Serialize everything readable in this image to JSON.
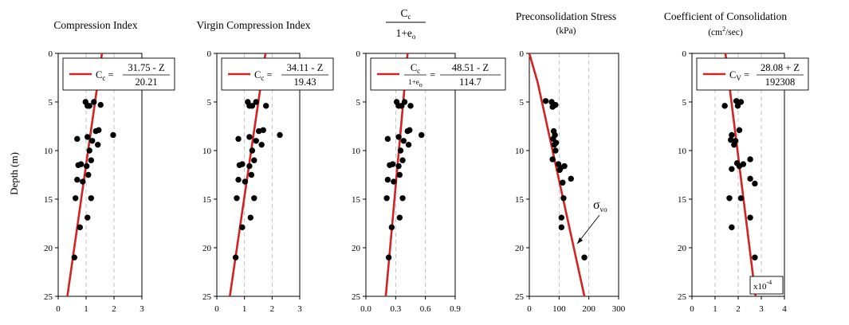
{
  "y_axis_label": "Depth (m)",
  "chart_data": [
    {
      "type": "scatter",
      "title": "Compression Index",
      "ylabel": "Depth (m)",
      "x_ticks": [
        "0",
        "1",
        "2",
        "3"
      ],
      "y_ticks": [
        "0",
        "5",
        "10",
        "15",
        "20",
        "25"
      ],
      "xlim": [
        0,
        3
      ],
      "ylim": [
        0,
        25
      ],
      "grid": "vertical dashed",
      "legend_eq": {
        "lhs": "C",
        "lhs_sub": "c",
        "num": "31.75 - Z",
        "den": "20.21"
      },
      "points": [
        {
          "x": 0.98,
          "y": 5.0
        },
        {
          "x": 1.05,
          "y": 5.4
        },
        {
          "x": 1.12,
          "y": 5.4
        },
        {
          "x": 1.28,
          "y": 5.0
        },
        {
          "x": 1.52,
          "y": 5.3
        },
        {
          "x": 1.45,
          "y": 7.9
        },
        {
          "x": 1.35,
          "y": 8.0
        },
        {
          "x": 1.97,
          "y": 8.4
        },
        {
          "x": 0.68,
          "y": 8.8
        },
        {
          "x": 1.05,
          "y": 8.6
        },
        {
          "x": 1.22,
          "y": 9.0
        },
        {
          "x": 1.42,
          "y": 9.4
        },
        {
          "x": 1.12,
          "y": 10.0
        },
        {
          "x": 0.72,
          "y": 11.5
        },
        {
          "x": 0.82,
          "y": 11.4
        },
        {
          "x": 1.02,
          "y": 11.6
        },
        {
          "x": 1.18,
          "y": 11.0
        },
        {
          "x": 0.68,
          "y": 13.0
        },
        {
          "x": 0.88,
          "y": 13.2
        },
        {
          "x": 1.08,
          "y": 12.5
        },
        {
          "x": 0.62,
          "y": 14.9
        },
        {
          "x": 1.18,
          "y": 14.9
        },
        {
          "x": 1.05,
          "y": 16.9
        },
        {
          "x": 0.78,
          "y": 17.9
        },
        {
          "x": 0.58,
          "y": 21.0
        }
      ],
      "fit_line": [
        {
          "x": 1.57,
          "y": 0
        },
        {
          "x": 0.33,
          "y": 25
        }
      ]
    },
    {
      "type": "scatter",
      "title": "Virgin Compression Index",
      "x_ticks": [
        "0",
        "1",
        "2",
        "3"
      ],
      "y_ticks": [
        "0",
        "5",
        "10",
        "15",
        "20",
        "25"
      ],
      "xlim": [
        0,
        3
      ],
      "ylim": [
        0,
        25
      ],
      "grid": "vertical dashed",
      "legend_eq": {
        "lhs": "C",
        "lhs_sub": "c",
        "num": "34.11 - Z",
        "den": "19.43"
      },
      "points": [
        {
          "x": 1.12,
          "y": 5.0
        },
        {
          "x": 1.18,
          "y": 5.4
        },
        {
          "x": 1.28,
          "y": 5.4
        },
        {
          "x": 1.42,
          "y": 5.0
        },
        {
          "x": 1.78,
          "y": 5.4
        },
        {
          "x": 1.68,
          "y": 7.9
        },
        {
          "x": 1.52,
          "y": 8.0
        },
        {
          "x": 2.28,
          "y": 8.4
        },
        {
          "x": 0.78,
          "y": 8.8
        },
        {
          "x": 1.18,
          "y": 8.6
        },
        {
          "x": 1.42,
          "y": 9.0
        },
        {
          "x": 1.62,
          "y": 9.4
        },
        {
          "x": 1.28,
          "y": 10.0
        },
        {
          "x": 0.82,
          "y": 11.5
        },
        {
          "x": 0.92,
          "y": 11.4
        },
        {
          "x": 1.18,
          "y": 11.6
        },
        {
          "x": 1.35,
          "y": 11.0
        },
        {
          "x": 0.78,
          "y": 13.0
        },
        {
          "x": 1.02,
          "y": 13.2
        },
        {
          "x": 1.25,
          "y": 12.5
        },
        {
          "x": 0.72,
          "y": 14.9
        },
        {
          "x": 1.35,
          "y": 14.9
        },
        {
          "x": 1.22,
          "y": 16.9
        },
        {
          "x": 0.92,
          "y": 17.9
        },
        {
          "x": 0.68,
          "y": 21.0
        }
      ],
      "fit_line": [
        {
          "x": 1.76,
          "y": 0
        },
        {
          "x": 0.47,
          "y": 25
        }
      ]
    },
    {
      "type": "scatter",
      "title": "Cc / 1+eo",
      "x_ticks": [
        "0.0",
        "0.3",
        "0.6",
        "0.9"
      ],
      "y_ticks": [
        "0",
        "5",
        "10",
        "15",
        "20",
        "25"
      ],
      "xlim": [
        0,
        0.9
      ],
      "ylim": [
        0,
        25
      ],
      "grid": "vertical dashed",
      "legend_eq": {
        "num": "48.51 - Z",
        "den": "114.7"
      },
      "points": [
        {
          "x": 0.31,
          "y": 5.0
        },
        {
          "x": 0.33,
          "y": 5.4
        },
        {
          "x": 0.36,
          "y": 5.4
        },
        {
          "x": 0.39,
          "y": 5.0
        },
        {
          "x": 0.45,
          "y": 5.4
        },
        {
          "x": 0.44,
          "y": 7.9
        },
        {
          "x": 0.42,
          "y": 8.0
        },
        {
          "x": 0.56,
          "y": 8.4
        },
        {
          "x": 0.22,
          "y": 8.8
        },
        {
          "x": 0.33,
          "y": 8.6
        },
        {
          "x": 0.38,
          "y": 9.0
        },
        {
          "x": 0.43,
          "y": 9.4
        },
        {
          "x": 0.35,
          "y": 10.0
        },
        {
          "x": 0.24,
          "y": 11.5
        },
        {
          "x": 0.27,
          "y": 11.4
        },
        {
          "x": 0.33,
          "y": 11.6
        },
        {
          "x": 0.37,
          "y": 11.0
        },
        {
          "x": 0.22,
          "y": 13.0
        },
        {
          "x": 0.28,
          "y": 13.2
        },
        {
          "x": 0.34,
          "y": 12.5
        },
        {
          "x": 0.21,
          "y": 14.9
        },
        {
          "x": 0.37,
          "y": 14.9
        },
        {
          "x": 0.34,
          "y": 16.9
        },
        {
          "x": 0.26,
          "y": 17.9
        },
        {
          "x": 0.23,
          "y": 21.0
        }
      ],
      "fit_line": [
        {
          "x": 0.42,
          "y": 0
        },
        {
          "x": 0.2,
          "y": 25
        }
      ]
    },
    {
      "type": "scatter",
      "title": "Preconsolidation Stress",
      "subtitle": "(kPa)",
      "x_ticks": [
        "0",
        "100",
        "200",
        "300"
      ],
      "y_ticks": [
        "0",
        "5",
        "10",
        "15",
        "20",
        "25"
      ],
      "xlim": [
        0,
        300
      ],
      "ylim": [
        0,
        25
      ],
      "grid": "vertical dashed",
      "annotation": {
        "symbol": "σ",
        "sub": "vo"
      },
      "points": [
        {
          "x": 55,
          "y": 4.9
        },
        {
          "x": 75,
          "y": 5.0
        },
        {
          "x": 82,
          "y": 5.4
        },
        {
          "x": 88,
          "y": 5.3
        },
        {
          "x": 78,
          "y": 5.5
        },
        {
          "x": 82,
          "y": 8.0
        },
        {
          "x": 86,
          "y": 8.4
        },
        {
          "x": 80,
          "y": 8.8
        },
        {
          "x": 84,
          "y": 9.4
        },
        {
          "x": 90,
          "y": 9.2
        },
        {
          "x": 88,
          "y": 10.0
        },
        {
          "x": 78,
          "y": 10.9
        },
        {
          "x": 98,
          "y": 11.4
        },
        {
          "x": 105,
          "y": 11.8
        },
        {
          "x": 118,
          "y": 11.6
        },
        {
          "x": 102,
          "y": 12.0
        },
        {
          "x": 140,
          "y": 12.9
        },
        {
          "x": 112,
          "y": 13.3
        },
        {
          "x": 115,
          "y": 14.9
        },
        {
          "x": 108,
          "y": 16.9
        },
        {
          "x": 108,
          "y": 17.9
        },
        {
          "x": 185,
          "y": 21.0
        }
      ],
      "fit_line": [
        {
          "x": 0,
          "y": 0
        },
        {
          "x": 28,
          "y": 3.0
        },
        {
          "x": 185,
          "y": 25
        }
      ]
    },
    {
      "type": "scatter",
      "title": "Coefficient of Consolidation",
      "subtitle_pre": "(cm",
      "subtitle_sup": "2",
      "subtitle_post": "/sec)",
      "x_ticks": [
        "0",
        "1",
        "2",
        "3",
        "4"
      ],
      "y_ticks": [
        "0",
        "5",
        "10",
        "15",
        "20",
        "25"
      ],
      "xlim": [
        0,
        4
      ],
      "ylim": [
        0,
        25
      ],
      "grid": "vertical dashed",
      "legend_eq": {
        "lhs": "C",
        "lhs_sub": "V",
        "num": "28.08 + Z",
        "den": "192308"
      },
      "multiplier": {
        "base": "x10",
        "exp": "-4"
      },
      "points": [
        {
          "x": 1.92,
          "y": 4.9
        },
        {
          "x": 2.12,
          "y": 5.0
        },
        {
          "x": 1.98,
          "y": 5.4
        },
        {
          "x": 1.42,
          "y": 5.4
        },
        {
          "x": 2.05,
          "y": 7.9
        },
        {
          "x": 1.72,
          "y": 8.4
        },
        {
          "x": 1.68,
          "y": 8.9
        },
        {
          "x": 1.88,
          "y": 9.0
        },
        {
          "x": 1.82,
          "y": 9.4
        },
        {
          "x": 1.72,
          "y": 11.9
        },
        {
          "x": 1.95,
          "y": 11.3
        },
        {
          "x": 2.05,
          "y": 11.6
        },
        {
          "x": 2.22,
          "y": 11.4
        },
        {
          "x": 2.52,
          "y": 10.9
        },
        {
          "x": 2.52,
          "y": 12.9
        },
        {
          "x": 2.72,
          "y": 13.4
        },
        {
          "x": 1.62,
          "y": 14.9
        },
        {
          "x": 2.12,
          "y": 14.9
        },
        {
          "x": 2.52,
          "y": 16.9
        },
        {
          "x": 1.72,
          "y": 17.9
        },
        {
          "x": 2.72,
          "y": 21.0
        }
      ],
      "fit_line": [
        {
          "x": 1.45,
          "y": 0
        },
        {
          "x": 2.75,
          "y": 25
        }
      ]
    }
  ]
}
